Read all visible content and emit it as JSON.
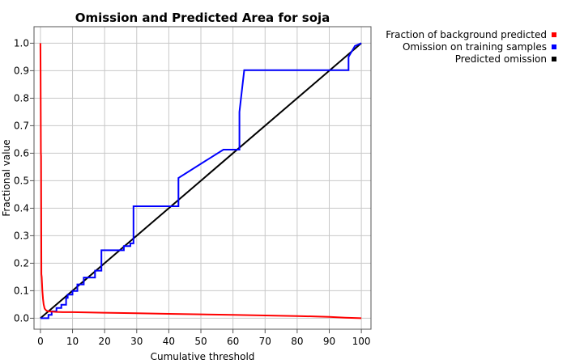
{
  "chart_data": {
    "type": "line",
    "title": "Omission and Predicted Area for soja",
    "xlabel": "Cumulative threshold",
    "ylabel": "Fractional value",
    "xlim": [
      -2,
      103
    ],
    "ylim": [
      -0.04,
      1.06
    ],
    "x_ticks": [
      0,
      10,
      20,
      30,
      40,
      50,
      60,
      70,
      80,
      90,
      100
    ],
    "y_ticks": [
      "0.0",
      "0.1",
      "0.2",
      "0.3",
      "0.4",
      "0.5",
      "0.6",
      "0.7",
      "0.8",
      "0.9",
      "1.0"
    ],
    "grid": true,
    "legend_position": "top-right, outside plot",
    "series": [
      {
        "name": "Fraction of background predicted",
        "color": "#ff0000",
        "x": [
          0.0,
          0.05,
          0.1,
          0.15,
          0.2,
          0.3,
          0.4,
          0.6,
          0.8,
          1.0,
          1.3,
          1.8,
          2.5,
          3.5,
          5,
          7,
          10,
          15,
          20,
          30,
          40,
          50,
          60,
          70,
          80,
          90,
          95,
          100
        ],
        "y": [
          1.0,
          0.9,
          0.75,
          0.6,
          0.59,
          0.16,
          0.15,
          0.1,
          0.07,
          0.05,
          0.035,
          0.028,
          0.025,
          0.024,
          0.023,
          0.022,
          0.022,
          0.021,
          0.02,
          0.018,
          0.016,
          0.014,
          0.012,
          0.01,
          0.008,
          0.005,
          0.002,
          0.0
        ]
      },
      {
        "name": "Omission on training samples",
        "color": "#0000ff",
        "x": [
          0,
          2.5,
          2.5,
          3.5,
          3.5,
          5,
          5,
          6.5,
          6.5,
          8,
          8,
          8.5,
          8.5,
          10,
          10,
          11.5,
          11.5,
          13.5,
          13.5,
          17,
          17,
          19,
          19,
          26,
          26,
          28,
          28,
          29,
          29,
          43,
          43,
          57,
          57,
          62,
          62,
          63.5,
          63.5,
          96,
          96,
          98,
          98,
          100
        ],
        "y": [
          0,
          0,
          0.012,
          0.012,
          0.025,
          0.025,
          0.037,
          0.037,
          0.049,
          0.049,
          0.074,
          0.074,
          0.086,
          0.086,
          0.099,
          0.099,
          0.123,
          0.123,
          0.148,
          0.148,
          0.173,
          0.173,
          0.247,
          0.247,
          0.262,
          0.262,
          0.272,
          0.272,
          0.407,
          0.407,
          0.51,
          0.613,
          0.613,
          0.613,
          0.75,
          0.902,
          0.902,
          0.902,
          0.95,
          0.99,
          0.99,
          1.0
        ]
      },
      {
        "name": "Predicted omission",
        "color": "#000000",
        "x": [
          0,
          100
        ],
        "y": [
          0,
          1
        ]
      }
    ]
  }
}
